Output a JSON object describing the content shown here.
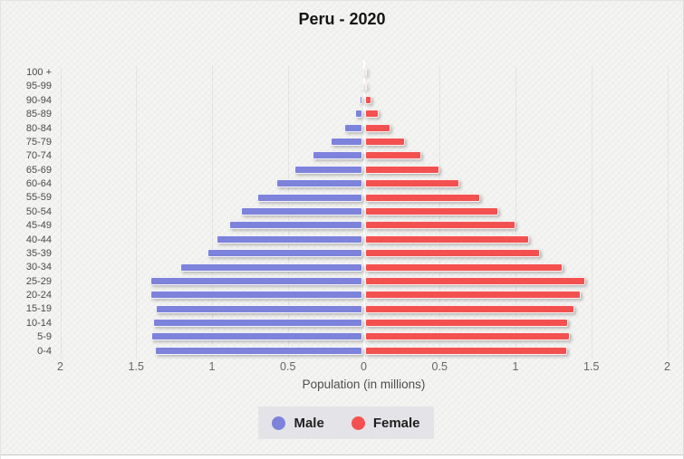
{
  "title": "Peru - 2020",
  "xlabel": "Population (in millions)",
  "legend": {
    "male": "Male",
    "female": "Female"
  },
  "colors": {
    "male": "#7d82da",
    "female": "#f25150",
    "background": "#f1f1ef",
    "legend_background": "#e4e4e8",
    "grid": "#dedddb",
    "center_line": "#ffffff",
    "tick_text": "#666666",
    "label_text": "#4a4a4a"
  },
  "axis": {
    "tick_labels": [
      "2",
      "1.5",
      "1",
      "0.5",
      "0",
      "0.5",
      "1",
      "1.5",
      "2"
    ],
    "tick_values": [
      -2,
      -1.5,
      -1,
      -0.5,
      0,
      0.5,
      1,
      1.5,
      2
    ]
  },
  "chart_data": {
    "type": "bar",
    "subtype": "population-pyramid",
    "title": "Peru - 2020",
    "xlabel": "Population (in millions)",
    "unit": "millions",
    "xlim": [
      -2,
      2
    ],
    "grid": true,
    "legend_position": "bottom",
    "orientation": "horizontal",
    "categories_top_to_bottom": [
      "100 +",
      "95-99",
      "90-94",
      "85-89",
      "80-84",
      "75-79",
      "70-74",
      "65-69",
      "60-64",
      "55-59",
      "50-54",
      "45-49",
      "40-44",
      "35-39",
      "30-34",
      "25-29",
      "20-24",
      "15-19",
      "10-14",
      "5-9",
      "0-4"
    ],
    "series": [
      {
        "name": "Male",
        "side": "left",
        "values_top_to_bottom": [
          0.002,
          0.006,
          0.02,
          0.05,
          0.12,
          0.21,
          0.33,
          0.45,
          0.57,
          0.69,
          0.8,
          0.88,
          0.96,
          1.02,
          1.2,
          1.4,
          1.4,
          1.36,
          1.38,
          1.39,
          1.37
        ]
      },
      {
        "name": "Female",
        "side": "right",
        "values_top_to_bottom": [
          0.004,
          0.013,
          0.04,
          0.09,
          0.17,
          0.26,
          0.37,
          0.49,
          0.62,
          0.76,
          0.88,
          0.99,
          1.08,
          1.15,
          1.3,
          1.45,
          1.42,
          1.38,
          1.34,
          1.35,
          1.33
        ]
      }
    ]
  }
}
